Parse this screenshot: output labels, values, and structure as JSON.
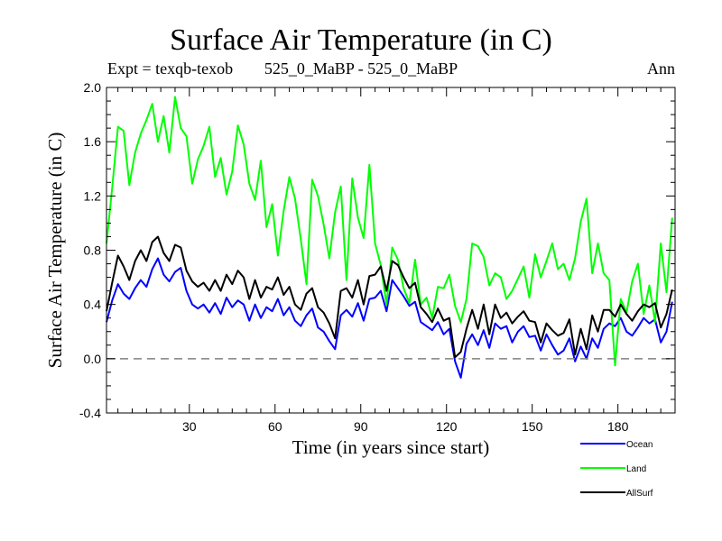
{
  "header": {
    "title": "Surface Air Temperature (in C)",
    "expt": "Expt = texqb-texob",
    "comparison": "525_0_MaBP - 525_0_MaBP",
    "season": "Ann"
  },
  "chart_data": {
    "type": "line",
    "title": "Surface Air Temperature (in C)",
    "xlabel": "Time (in years since start)",
    "ylabel": "Surface Air Temperature (in C)",
    "xlim": [
      1,
      200
    ],
    "ylim": [
      -0.4,
      2.0
    ],
    "xticks": [
      30,
      60,
      90,
      120,
      150,
      180
    ],
    "yticks": [
      -0.4,
      0.0,
      0.4,
      0.8,
      1.2,
      1.6,
      2.0
    ],
    "ytick_labels": [
      "-0.4",
      "0.0",
      "0.4",
      "0.8",
      "1.2",
      "1.6",
      "2.0"
    ],
    "zero_line": "dashed",
    "grid": false,
    "legend_position": "bottom-right",
    "x": [
      1,
      3,
      5,
      7,
      9,
      11,
      13,
      15,
      17,
      19,
      21,
      23,
      25,
      27,
      29,
      31,
      33,
      35,
      37,
      39,
      41,
      43,
      45,
      47,
      49,
      51,
      53,
      55,
      57,
      59,
      61,
      63,
      65,
      67,
      69,
      71,
      73,
      75,
      77,
      79,
      81,
      83,
      85,
      87,
      89,
      91,
      93,
      95,
      97,
      99,
      101,
      103,
      105,
      107,
      109,
      111,
      113,
      115,
      117,
      119,
      121,
      123,
      125,
      127,
      129,
      131,
      133,
      135,
      137,
      139,
      141,
      143,
      145,
      147,
      149,
      151,
      153,
      155,
      157,
      159,
      161,
      163,
      165,
      167,
      169,
      171,
      173,
      175,
      177,
      179,
      181,
      183,
      185,
      187,
      189,
      191,
      193,
      195,
      197,
      199
    ],
    "series": [
      {
        "name": "Ocean",
        "color": "#0000ff",
        "values": [
          0.27,
          0.43,
          0.55,
          0.48,
          0.44,
          0.52,
          0.58,
          0.53,
          0.66,
          0.74,
          0.62,
          0.57,
          0.64,
          0.67,
          0.5,
          0.4,
          0.37,
          0.4,
          0.34,
          0.41,
          0.33,
          0.45,
          0.38,
          0.43,
          0.4,
          0.28,
          0.4,
          0.3,
          0.38,
          0.35,
          0.44,
          0.32,
          0.38,
          0.28,
          0.24,
          0.32,
          0.37,
          0.23,
          0.2,
          0.13,
          0.07,
          0.32,
          0.36,
          0.31,
          0.41,
          0.28,
          0.44,
          0.45,
          0.5,
          0.35,
          0.58,
          0.52,
          0.46,
          0.39,
          0.42,
          0.27,
          0.24,
          0.21,
          0.27,
          0.18,
          0.22,
          -0.02,
          -0.14,
          0.11,
          0.18,
          0.1,
          0.21,
          0.08,
          0.26,
          0.22,
          0.24,
          0.12,
          0.2,
          0.24,
          0.16,
          0.17,
          0.06,
          0.18,
          0.1,
          0.03,
          0.06,
          0.15,
          -0.02,
          0.09,
          0.0,
          0.15,
          0.08,
          0.22,
          0.26,
          0.24,
          0.3,
          0.2,
          0.17,
          0.23,
          0.3,
          0.26,
          0.29,
          0.12,
          0.2,
          0.42
        ]
      },
      {
        "name": "Land",
        "color": "#00ff00",
        "values": [
          0.85,
          1.26,
          1.71,
          1.68,
          1.28,
          1.52,
          1.66,
          1.76,
          1.88,
          1.6,
          1.79,
          1.52,
          1.93,
          1.7,
          1.64,
          1.29,
          1.47,
          1.57,
          1.71,
          1.34,
          1.48,
          1.21,
          1.38,
          1.72,
          1.58,
          1.29,
          1.17,
          1.46,
          0.97,
          1.14,
          0.76,
          1.09,
          1.34,
          1.18,
          0.88,
          0.55,
          1.32,
          1.2,
          0.99,
          0.74,
          1.08,
          1.27,
          0.58,
          1.33,
          1.04,
          0.89,
          1.43,
          0.85,
          0.69,
          0.4,
          0.82,
          0.73,
          0.52,
          0.41,
          0.73,
          0.4,
          0.45,
          0.3,
          0.53,
          0.52,
          0.62,
          0.39,
          0.27,
          0.44,
          0.85,
          0.83,
          0.75,
          0.54,
          0.63,
          0.6,
          0.44,
          0.5,
          0.59,
          0.68,
          0.45,
          0.77,
          0.6,
          0.72,
          0.85,
          0.66,
          0.7,
          0.58,
          0.74,
          1.01,
          1.18,
          0.63,
          0.85,
          0.63,
          0.58,
          -0.05,
          0.44,
          0.34,
          0.57,
          0.7,
          0.33,
          0.54,
          0.27,
          0.85,
          0.49,
          1.04
        ]
      },
      {
        "name": "AllSurf",
        "color": "#000000",
        "values": [
          0.35,
          0.56,
          0.76,
          0.68,
          0.58,
          0.72,
          0.8,
          0.72,
          0.86,
          0.9,
          0.78,
          0.72,
          0.84,
          0.82,
          0.65,
          0.57,
          0.53,
          0.56,
          0.5,
          0.58,
          0.5,
          0.62,
          0.55,
          0.65,
          0.6,
          0.44,
          0.58,
          0.45,
          0.53,
          0.51,
          0.6,
          0.47,
          0.53,
          0.4,
          0.36,
          0.48,
          0.52,
          0.38,
          0.34,
          0.26,
          0.15,
          0.5,
          0.52,
          0.45,
          0.58,
          0.4,
          0.61,
          0.62,
          0.68,
          0.5,
          0.72,
          0.69,
          0.6,
          0.52,
          0.56,
          0.38,
          0.33,
          0.27,
          0.37,
          0.28,
          0.3,
          0.01,
          0.05,
          0.22,
          0.36,
          0.22,
          0.4,
          0.18,
          0.4,
          0.3,
          0.34,
          0.26,
          0.31,
          0.35,
          0.28,
          0.27,
          0.12,
          0.26,
          0.21,
          0.17,
          0.19,
          0.29,
          0.03,
          0.22,
          0.07,
          0.32,
          0.2,
          0.36,
          0.36,
          0.31,
          0.4,
          0.33,
          0.28,
          0.35,
          0.4,
          0.38,
          0.41,
          0.23,
          0.33,
          0.51
        ]
      }
    ]
  }
}
